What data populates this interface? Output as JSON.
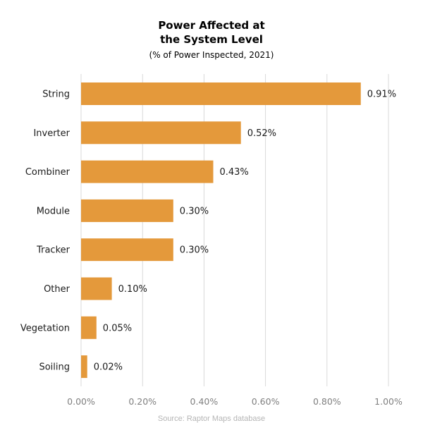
{
  "chart_data": {
    "type": "bar",
    "orientation": "horizontal",
    "title_lines": [
      "Power Affected at",
      "the System Level"
    ],
    "subtitle": "(% of Power Inspected, 2021)",
    "categories": [
      "String",
      "Inverter",
      "Combiner",
      "Module",
      "Tracker",
      "Other",
      "Vegetation",
      "Soiling"
    ],
    "values": [
      0.91,
      0.52,
      0.43,
      0.3,
      0.3,
      0.1,
      0.05,
      0.02
    ],
    "value_labels": [
      "0.91%",
      "0.52%",
      "0.43%",
      "0.30%",
      "0.30%",
      "0.10%",
      "0.05%",
      "0.02%"
    ],
    "x_ticks": [
      0,
      0.2,
      0.4,
      0.6,
      0.8,
      1.0
    ],
    "x_tick_labels": [
      "0.00%",
      "0.20%",
      "0.40%",
      "0.60%",
      "0.80%",
      "1.00%"
    ],
    "xlim": [
      0,
      1.0
    ],
    "xlabel": "",
    "ylabel": "",
    "grid": "vertical",
    "legend": "none",
    "bar_color": "#E4993B",
    "grid_color": "#D9D9D9",
    "source_note": "Source: Raptor Maps database"
  }
}
